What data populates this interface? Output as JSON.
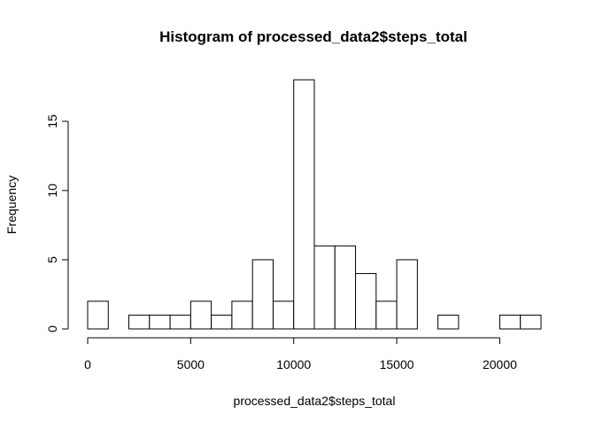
{
  "chart_data": {
    "type": "bar",
    "title": "Histogram of processed_data2$steps_total",
    "xlabel": "processed_data2$steps_total",
    "ylabel": "Frequency",
    "bin_width": 1000,
    "bin_starts": [
      0,
      1000,
      2000,
      3000,
      4000,
      5000,
      6000,
      7000,
      8000,
      9000,
      10000,
      11000,
      12000,
      13000,
      14000,
      15000,
      16000,
      17000,
      18000,
      19000,
      20000,
      21000
    ],
    "values": [
      2,
      0,
      1,
      1,
      1,
      2,
      1,
      2,
      5,
      2,
      18,
      6,
      6,
      4,
      2,
      5,
      0,
      1,
      0,
      0,
      1,
      1
    ],
    "xlim": [
      0,
      22000
    ],
    "ylim": [
      0,
      18
    ],
    "x_ticks": [
      0,
      5000,
      10000,
      15000,
      20000
    ],
    "x_tick_labels": [
      "0",
      "5000",
      "10000",
      "15000",
      "20000"
    ],
    "y_ticks": [
      0,
      5,
      10,
      15
    ],
    "y_tick_labels": [
      "0",
      "5",
      "10",
      "15"
    ],
    "bar_fill": "#ffffff",
    "bar_stroke": "#000000",
    "grid": false,
    "legend": "none"
  }
}
